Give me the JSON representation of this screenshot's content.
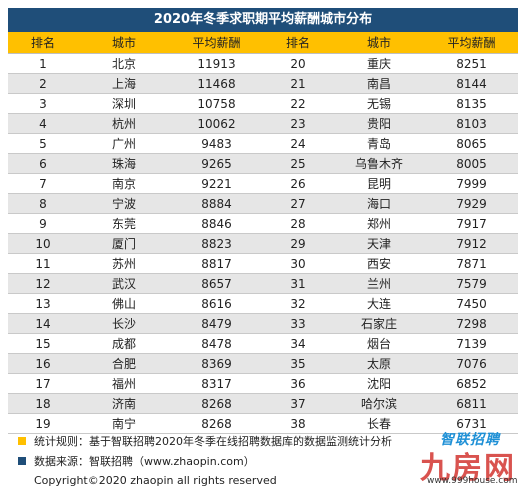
{
  "title": "2020年冬季求职期平均薪酬城市分布",
  "headers": [
    "排名",
    "城市",
    "平均薪酬",
    "排名",
    "城市",
    "平均薪酬"
  ],
  "rows": [
    [
      1,
      "北京",
      11913,
      20,
      "重庆",
      8251
    ],
    [
      2,
      "上海",
      11468,
      21,
      "南昌",
      8144
    ],
    [
      3,
      "深圳",
      10758,
      22,
      "无锡",
      8135
    ],
    [
      4,
      "杭州",
      10062,
      23,
      "贵阳",
      8103
    ],
    [
      5,
      "广州",
      9483,
      24,
      "青岛",
      8065
    ],
    [
      6,
      "珠海",
      9265,
      25,
      "乌鲁木齐",
      8005
    ],
    [
      7,
      "南京",
      9221,
      26,
      "昆明",
      7999
    ],
    [
      8,
      "宁波",
      8884,
      27,
      "海口",
      7929
    ],
    [
      9,
      "东莞",
      8846,
      28,
      "郑州",
      7917
    ],
    [
      10,
      "厦门",
      8823,
      29,
      "天津",
      7912
    ],
    [
      11,
      "苏州",
      8817,
      30,
      "西安",
      7871
    ],
    [
      12,
      "武汉",
      8657,
      31,
      "兰州",
      7579
    ],
    [
      13,
      "佛山",
      8616,
      32,
      "大连",
      7450
    ],
    [
      14,
      "长沙",
      8479,
      33,
      "石家庄",
      7298
    ],
    [
      15,
      "成都",
      8478,
      34,
      "烟台",
      7139
    ],
    [
      16,
      "合肥",
      8369,
      35,
      "太原",
      7076
    ],
    [
      17,
      "福州",
      8317,
      36,
      "沈阳",
      6852
    ],
    [
      18,
      "济南",
      8268,
      37,
      "哈尔滨",
      6811
    ],
    [
      19,
      "南宁",
      8268,
      38,
      "长春",
      6731
    ]
  ],
  "notes": {
    "rule": "统计规则：基于智联招聘2020年冬季在线招聘数据库的数据监测统计分析",
    "source": "数据来源：智联招聘（www.zhaopin.com）"
  },
  "copyright": "Copyright©2020 zhaopin all rights reserved",
  "watermark": {
    "brand": "智联招聘",
    "site_name": "九房网",
    "site_url": "www.999house.com"
  },
  "colors": {
    "title_bg": "#1f4e79",
    "header_bg": "#ffc000",
    "stripe": "#e6e6e6"
  }
}
